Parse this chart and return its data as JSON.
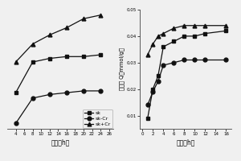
{
  "left": {
    "sk_x": [
      4,
      8,
      12,
      16,
      20,
      24
    ],
    "sk_y": [
      0.55,
      0.72,
      0.74,
      0.75,
      0.75,
      0.76
    ],
    "sk_cr_x": [
      4,
      8,
      12,
      16,
      20,
      24
    ],
    "sk_cr_y": [
      0.38,
      0.52,
      0.54,
      0.55,
      0.56,
      0.56
    ],
    "sk_add_cr_x": [
      4,
      8,
      12,
      16,
      20,
      24
    ],
    "sk_add_cr_y": [
      0.72,
      0.82,
      0.87,
      0.91,
      0.96,
      0.98
    ],
    "xlabel": "时间（h）",
    "xlim": [
      2,
      27
    ],
    "xticks": [
      4,
      6,
      8,
      10,
      12,
      14,
      16,
      18,
      20,
      22,
      24,
      26
    ],
    "legend_labels": [
      "sk",
      "sk-Cr",
      "sk+Cr"
    ]
  },
  "right": {
    "sk_x": [
      1,
      2,
      3,
      4,
      6,
      8,
      10,
      12,
      16
    ],
    "sk_y": [
      0.009,
      0.02,
      0.025,
      0.036,
      0.038,
      0.04,
      0.04,
      0.041,
      0.042
    ],
    "sk_cr_x": [
      1,
      2,
      3,
      4,
      6,
      8,
      10,
      12,
      16
    ],
    "sk_cr_y": [
      0.014,
      0.019,
      0.023,
      0.029,
      0.03,
      0.031,
      0.031,
      0.031,
      0.031
    ],
    "sk_add_cr_x": [
      1,
      2,
      3,
      4,
      6,
      8,
      10,
      12,
      16
    ],
    "sk_add_cr_y": [
      0.033,
      0.037,
      0.04,
      0.041,
      0.043,
      0.044,
      0.044,
      0.044,
      0.044
    ],
    "xlabel": "时间（h）",
    "ylabel": "吸附量 Q（mmol/g）",
    "ylim": [
      0.005,
      0.05
    ],
    "xlim": [
      -0.5,
      17
    ],
    "yticks": [
      0.01,
      0.02,
      0.03,
      0.04,
      0.05
    ],
    "xticks": [
      0,
      2,
      4,
      6,
      8,
      10,
      12,
      14,
      16
    ]
  },
  "bg_color": "#f0f0f0",
  "plot_bg": "#f0f0f0",
  "line_color": "#111111",
  "marker_sq": "s",
  "marker_ci": "o",
  "marker_tr": "^",
  "markersize": 3.5,
  "linewidth": 0.9
}
